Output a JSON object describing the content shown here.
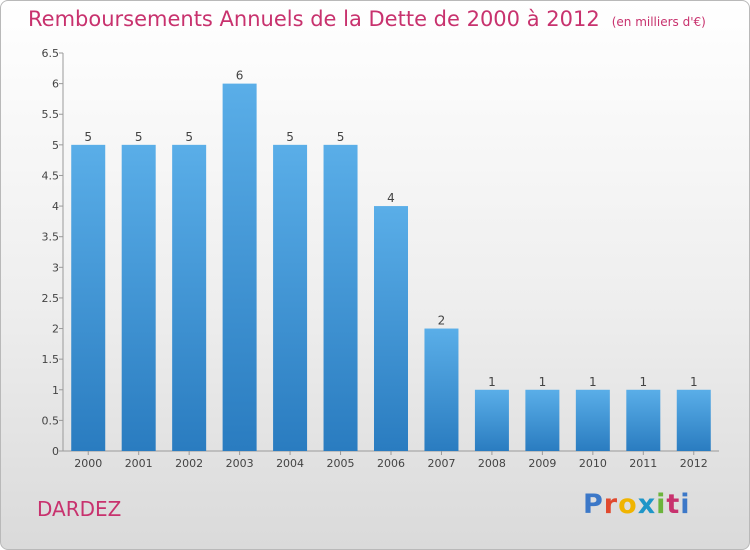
{
  "header": {
    "title": "Remboursements Annuels de la Dette de 2000 à 2012",
    "unit": "(en milliers d'€)"
  },
  "footer": {
    "commune": "DARDEZ",
    "logo": "Proxiti"
  },
  "colors": {
    "title": "#c8326e",
    "bar_top": "#5aaee8",
    "bar_bottom": "#2a7cc0"
  },
  "chart_data": {
    "type": "bar",
    "title": "Remboursements Annuels de la Dette de 2000 à 2012",
    "xlabel": "",
    "ylabel": "",
    "categories": [
      "2000",
      "2001",
      "2002",
      "2003",
      "2004",
      "2005",
      "2006",
      "2007",
      "2008",
      "2009",
      "2010",
      "2011",
      "2012"
    ],
    "values": [
      5,
      5,
      5,
      6,
      5,
      5,
      4,
      2,
      1,
      1,
      1,
      1,
      1
    ],
    "data_labels": [
      "5",
      "5",
      "5",
      "6",
      "5",
      "5",
      "4",
      "2",
      "1",
      "1",
      "1",
      "1",
      "1"
    ],
    "ylim": [
      0,
      6.5
    ],
    "yticks": [
      "0",
      "0.5",
      "1",
      "1.5",
      "2",
      "2.5",
      "3",
      "3.5",
      "4",
      "4.5",
      "5",
      "5.5",
      "6",
      "6.5"
    ],
    "grid": false,
    "legend": "none"
  }
}
